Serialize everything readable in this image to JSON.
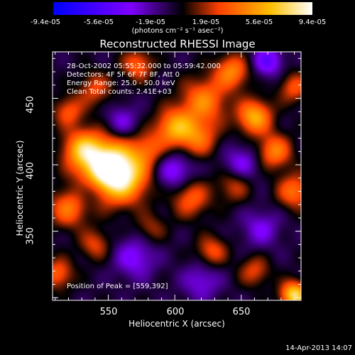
{
  "colorbar": {
    "ticks": [
      "-9.4e-05",
      "-5.6e-05",
      "-1.9e-05",
      "1.9e-05",
      "5.6e-05",
      "9.4e-05"
    ],
    "units": "(photons cm⁻² s⁻¹ asec⁻²)",
    "range": [
      -9.4e-05,
      9.4e-05
    ],
    "colors": [
      "#0000ff",
      "#8000ff",
      "#000000",
      "#ff4000",
      "#ffc000",
      "#ffffff"
    ]
  },
  "info": {
    "time": "28-Oct-2002 05:55:32.000 to 05:59:42.000",
    "detectors": "Detectors: 4F 5F 6F 7F 8F, Att 0",
    "energy": "Energy Range: 25.0 - 50.0 keV",
    "clean": "Clean     Total counts: 2.41E+03",
    "peak": "Position of Peak = [559,392]"
  },
  "timestamp": "14-Apr-2013 14:07",
  "chart_data": {
    "type": "heatmap",
    "title": "Reconstructed RHESSI Image",
    "xlabel": "Heliocentric X (arcsec)",
    "ylabel": "Heliocentric Y (arcsec)",
    "xlim": [
      508,
      695
    ],
    "ylim": [
      298,
      485
    ],
    "xticks": [
      550,
      600,
      650
    ],
    "yticks": [
      350,
      400,
      450
    ],
    "peak": [
      559,
      392
    ],
    "blobs": [
      {
        "x": 559,
        "y": 392,
        "amp": 1.0,
        "s": 14
      },
      {
        "x": 545,
        "y": 402,
        "amp": 0.7,
        "s": 14
      },
      {
        "x": 530,
        "y": 412,
        "amp": 0.55,
        "s": 10
      },
      {
        "x": 600,
        "y": 428,
        "amp": 0.65,
        "s": 10
      },
      {
        "x": 622,
        "y": 448,
        "amp": 0.55,
        "s": 12
      },
      {
        "x": 618,
        "y": 420,
        "amp": 0.45,
        "s": 10
      },
      {
        "x": 580,
        "y": 412,
        "amp": 0.35,
        "s": 9
      },
      {
        "x": 540,
        "y": 457,
        "amp": 0.35,
        "s": 9
      },
      {
        "x": 572,
        "y": 475,
        "amp": 0.45,
        "s": 8
      },
      {
        "x": 643,
        "y": 470,
        "amp": 0.55,
        "s": 9
      },
      {
        "x": 660,
        "y": 436,
        "amp": 0.7,
        "s": 9
      },
      {
        "x": 675,
        "y": 410,
        "amp": 0.55,
        "s": 9
      },
      {
        "x": 690,
        "y": 380,
        "amp": 0.5,
        "s": 9
      },
      {
        "x": 612,
        "y": 375,
        "amp": 0.45,
        "s": 10
      },
      {
        "x": 645,
        "y": 385,
        "amp": 0.35,
        "s": 9
      },
      {
        "x": 520,
        "y": 367,
        "amp": 0.5,
        "s": 10
      },
      {
        "x": 540,
        "y": 340,
        "amp": 0.35,
        "s": 8
      },
      {
        "x": 582,
        "y": 352,
        "amp": 0.25,
        "s": 8
      },
      {
        "x": 628,
        "y": 335,
        "amp": 0.4,
        "s": 8
      },
      {
        "x": 660,
        "y": 320,
        "amp": 0.35,
        "s": 8
      },
      {
        "x": 690,
        "y": 302,
        "amp": 0.9,
        "s": 7
      },
      {
        "x": 512,
        "y": 318,
        "amp": 0.45,
        "s": 8
      },
      {
        "x": 520,
        "y": 440,
        "amp": 0.4,
        "s": 8
      },
      {
        "x": 690,
        "y": 458,
        "amp": 0.4,
        "s": 8
      },
      {
        "x": 600,
        "y": 395,
        "amp": -0.4,
        "s": 10
      },
      {
        "x": 650,
        "y": 400,
        "amp": -0.35,
        "s": 10
      },
      {
        "x": 570,
        "y": 330,
        "amp": -0.35,
        "s": 11
      },
      {
        "x": 620,
        "y": 312,
        "amp": -0.3,
        "s": 10
      },
      {
        "x": 670,
        "y": 478,
        "amp": -0.45,
        "s": 8
      },
      {
        "x": 560,
        "y": 432,
        "amp": -0.3,
        "s": 9
      },
      {
        "x": 665,
        "y": 352,
        "amp": -0.3,
        "s": 10
      },
      {
        "x": 535,
        "y": 380,
        "amp": -0.2,
        "s": 7
      }
    ]
  }
}
